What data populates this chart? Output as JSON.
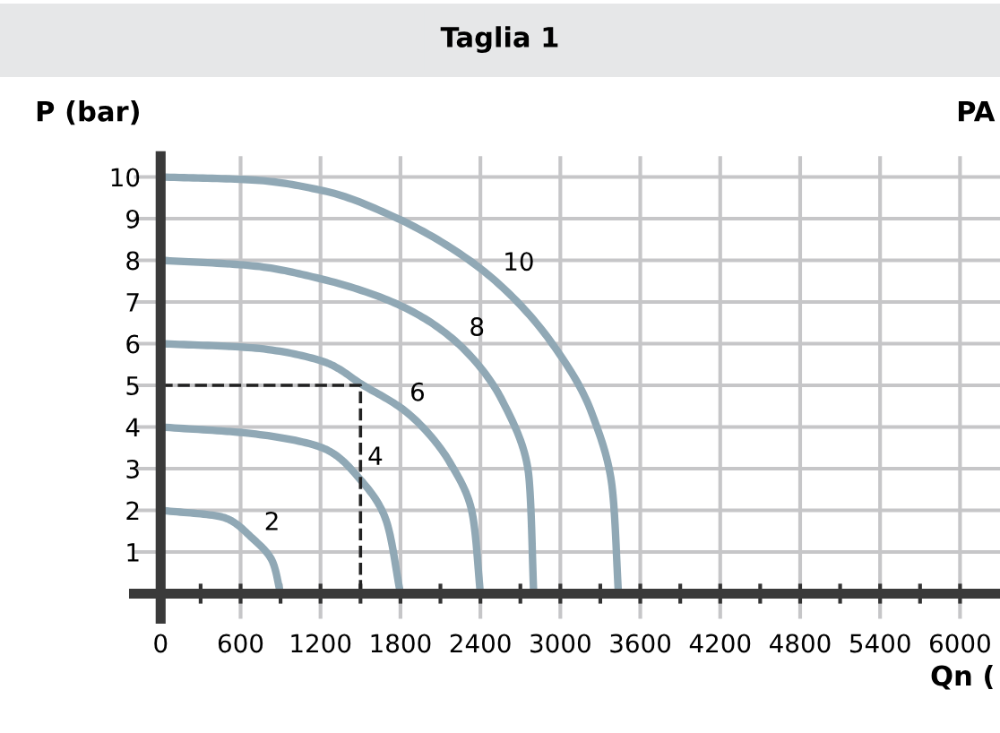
{
  "chart_data": {
    "type": "line",
    "title": "Taglia 1",
    "xlabel": "Qn (",
    "ylabel": "P (bar)",
    "series": [
      {
        "name": "2",
        "color": "#90a8b5",
        "x": [
          0,
          460,
          685,
          841,
          900
        ],
        "values": [
          2,
          1.84,
          1.34,
          0.76,
          0
        ]
      },
      {
        "name": "4",
        "color": "#90a8b5",
        "x": [
          0,
          685,
          1221,
          1490,
          1691,
          1800
        ],
        "values": [
          4,
          3.84,
          3.49,
          2.77,
          1.77,
          0
        ]
      },
      {
        "name": "6",
        "color": "#90a8b5",
        "x": [
          0,
          685,
          1221,
          1521,
          1848,
          2161,
          2340,
          2400
        ],
        "values": [
          6,
          5.9,
          5.57,
          5.0,
          4.35,
          3.2,
          1.91,
          0
        ]
      },
      {
        "name": "8",
        "color": "#90a8b5",
        "x": [
          0,
          685,
          1221,
          1781,
          2205,
          2563,
          2765,
          2800
        ],
        "values": [
          8,
          7.87,
          7.54,
          6.94,
          6.08,
          4.64,
          2.77,
          0
        ]
      },
      {
        "name": "10",
        "color": "#90a8b5",
        "x": [
          0,
          685,
          1221,
          1781,
          2429,
          2921,
          3234,
          3391,
          3436
        ],
        "values": [
          10,
          9.93,
          9.67,
          9.0,
          7.73,
          6.08,
          4.35,
          2.49,
          0
        ]
      },
      {
        "color": "#222222",
        "line_style": "dashed",
        "x": [
          0,
          1500,
          1500
        ],
        "values": [
          5,
          5,
          0
        ]
      }
    ],
    "annotations": [
      "PA"
    ],
    "xlim": [
      -200,
      6300
    ],
    "ylim": [
      -0.6,
      10.5
    ],
    "xticks": [
      0,
      {
        "value": 300,
        "label": null
      },
      600,
      {
        "value": 900,
        "label": null
      },
      1200,
      {
        "value": 1500,
        "label": null
      },
      1800,
      {
        "value": 2100,
        "label": null
      },
      2400,
      {
        "value": 2700,
        "label": null
      },
      3000,
      {
        "value": 3300,
        "label": null
      },
      3600,
      {
        "value": 3900,
        "label": null
      },
      4200,
      {
        "value": 4500,
        "label": null
      },
      4800,
      {
        "value": 5100,
        "label": null
      },
      5400,
      {
        "value": 5700,
        "label": null
      },
      6000
    ],
    "yticks": [
      1,
      2,
      3,
      4,
      5,
      6,
      7,
      8,
      9,
      10
    ],
    "grid": true,
    "legend": false
  }
}
